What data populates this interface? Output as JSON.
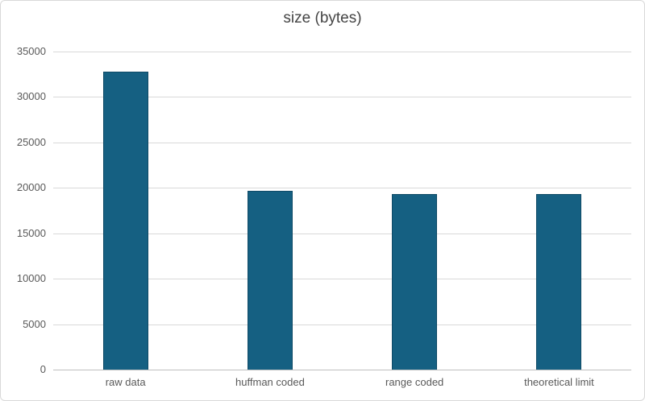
{
  "chart": {
    "title": "size (bytes)",
    "colors": {
      "bar_fill": "#156082",
      "bar_border": "#0e4a66",
      "gridline": "#d9d9d9",
      "axis_line": "#bfbfbf",
      "tick_text": "#595959",
      "title_text": "#444444",
      "chart_border": "#d9d9d9",
      "background": "#ffffff"
    }
  },
  "chart_data": {
    "type": "bar",
    "title": "size (bytes)",
    "categories": [
      "raw data",
      "huffman coded",
      "range coded",
      "theoretical limit"
    ],
    "values": [
      32768,
      19650,
      19340,
      19330
    ],
    "xlabel": "",
    "ylabel": "",
    "ylim": [
      0,
      35000
    ],
    "ytick_step": 5000,
    "ytick_labels": [
      "0",
      "5000",
      "10000",
      "15000",
      "20000",
      "25000",
      "30000",
      "35000"
    ],
    "grid": true,
    "legend": false,
    "bar_color": "#156082"
  }
}
